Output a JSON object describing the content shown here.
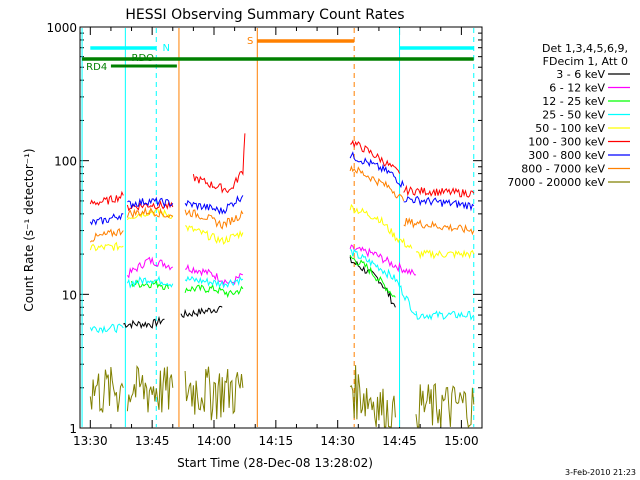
{
  "chart_data": {
    "type": "line",
    "title": "HESSI Observing Summary Count Rates",
    "xlabel": "Start Time (28-Dec-08 13:28:02)",
    "ylabel": "Count Rate (s⁻¹ detector⁻¹)",
    "x_unit": "minutes after 13:00 UT",
    "xlim": [
      27.5,
      125
    ],
    "ylim": [
      1,
      1000
    ],
    "y_scale": "log",
    "grid": false,
    "legend_position": "right",
    "x_ticks": [
      "13:30",
      "13:45",
      "14:00",
      "14:15",
      "14:30",
      "14:45",
      "15:00"
    ],
    "x_tick_values": [
      30,
      45,
      60,
      75,
      90,
      105,
      120
    ],
    "y_ticks": [
      "1",
      "10",
      "100",
      "1000"
    ],
    "y_tick_values": [
      1,
      10,
      100,
      1000
    ],
    "legend_header": [
      "Det 1,3,4,5,6,9,",
      "FDecim 1, Att 0"
    ],
    "series": [
      {
        "name": "3 - 6 keV",
        "color": "#000000",
        "segments": [
          [
            [
              38,
              6
            ],
            [
              45,
              6
            ],
            [
              48,
              6.5
            ]
          ],
          [
            [
              52,
              7
            ],
            [
              58,
              7.5
            ],
            [
              62,
              8
            ]
          ],
          [
            [
              93,
              18
            ],
            [
              100,
              13
            ],
            [
              102,
              10.5
            ],
            [
              104,
              8
            ]
          ]
        ]
      },
      {
        "name": "6 - 12 keV",
        "color": "#ff00ff",
        "segments": [
          [
            [
              39,
              14
            ],
            [
              44,
              18
            ],
            [
              48,
              17
            ],
            [
              50,
              16
            ]
          ],
          [
            [
              53,
              16
            ],
            [
              57,
              15
            ],
            [
              60,
              14
            ],
            [
              64,
              12
            ],
            [
              67,
              14
            ]
          ],
          [
            [
              93,
              22
            ],
            [
              99,
              20
            ],
            [
              103,
              17
            ],
            [
              109,
              14
            ]
          ]
        ]
      },
      {
        "name": "12 - 25 keV",
        "color": "#00ff00",
        "segments": [
          [
            [
              40,
              12
            ],
            [
              47,
              12
            ],
            [
              49,
              11
            ]
          ],
          [
            [
              53,
              11
            ],
            [
              60,
              11
            ],
            [
              64,
              10
            ],
            [
              67,
              11
            ]
          ],
          [
            [
              93,
              19
            ],
            [
              97,
              16
            ],
            [
              101,
              12
            ],
            [
              104,
              9.5
            ]
          ]
        ]
      },
      {
        "name": "25 - 50 keV",
        "color": "#00ffff",
        "segments": [
          [
            [
              30,
              5.6
            ],
            [
              38,
              5.6
            ]
          ],
          [
            [
              39,
              12
            ],
            [
              44,
              13
            ],
            [
              48,
              12.5
            ],
            [
              50,
              12
            ]
          ],
          [
            [
              53,
              13
            ],
            [
              58,
              12.5
            ],
            [
              62,
              12
            ],
            [
              67,
              13
            ]
          ],
          [
            [
              93,
              21
            ],
            [
              100,
              16
            ],
            [
              104,
              13
            ],
            [
              109,
              7
            ]
          ],
          [
            [
              109,
              7
            ],
            [
              123,
              7
            ]
          ]
        ]
      },
      {
        "name": "50 - 100 keV",
        "color": "#ffff00",
        "segments": [
          [
            [
              30,
              22
            ],
            [
              38,
              23
            ]
          ],
          [
            [
              39,
              38
            ],
            [
              45,
              42
            ],
            [
              50,
              39
            ]
          ],
          [
            [
              53,
              32
            ],
            [
              58,
              28
            ],
            [
              62,
              25
            ],
            [
              67,
              29
            ]
          ],
          [
            [
              93,
              45
            ],
            [
              100,
              37
            ],
            [
              104,
              27
            ],
            [
              108,
              22
            ]
          ],
          [
            [
              109,
              20
            ],
            [
              123,
              20
            ]
          ]
        ]
      },
      {
        "name": "100 - 300 keV",
        "color": "#ff0000",
        "segments": [
          [
            [
              30,
              48
            ],
            [
              34,
              50
            ],
            [
              38,
              55
            ]
          ],
          [
            [
              39,
              45
            ],
            [
              45,
              47
            ],
            [
              50,
              45
            ]
          ],
          [
            [
              55,
              75
            ],
            [
              60,
              65
            ],
            [
              64,
              60
            ],
            [
              67,
              85
            ],
            [
              67.5,
              160
            ]
          ],
          [
            [
              93,
              140
            ],
            [
              97,
              120
            ],
            [
              101,
              100
            ],
            [
              105,
              80
            ]
          ],
          [
            [
              106,
              60
            ],
            [
              123,
              57
            ]
          ]
        ]
      },
      {
        "name": "300 - 800 keV",
        "color": "#0000ff",
        "segments": [
          [
            [
              30,
              34
            ],
            [
              34,
              36
            ],
            [
              38,
              40
            ]
          ],
          [
            [
              39,
              47
            ],
            [
              44,
              50
            ],
            [
              50,
              48
            ]
          ],
          [
            [
              53,
              48
            ],
            [
              58,
              45
            ],
            [
              62,
              42
            ],
            [
              67,
              55
            ]
          ],
          [
            [
              93,
              110
            ],
            [
              98,
              95
            ],
            [
              103,
              80
            ],
            [
              106,
              65
            ]
          ],
          [
            [
              106,
              52
            ],
            [
              123,
              46
            ]
          ]
        ]
      },
      {
        "name": "800 - 7000 keV",
        "color": "#ff8000",
        "segments": [
          [
            [
              30,
              26
            ],
            [
              34,
              28
            ],
            [
              38,
              30
            ]
          ],
          [
            [
              39,
              40
            ],
            [
              45,
              42
            ],
            [
              50,
              38
            ]
          ],
          [
            [
              53,
              42
            ],
            [
              58,
              38
            ],
            [
              62,
              33
            ],
            [
              67,
              40
            ]
          ],
          [
            [
              93,
              90
            ],
            [
              98,
              75
            ],
            [
              103,
              62
            ],
            [
              106,
              50
            ]
          ],
          [
            [
              106,
              35
            ],
            [
              123,
              30
            ]
          ]
        ]
      },
      {
        "name": "7000 - 20000 keV",
        "color": "#808000",
        "segments": [
          [
            [
              30,
              2
            ],
            [
              38,
              2
            ]
          ],
          [
            [
              39,
              2
            ],
            [
              45,
              2
            ],
            [
              50,
              2
            ]
          ],
          [
            [
              53,
              2
            ],
            [
              60,
              2
            ],
            [
              67,
              2
            ]
          ],
          [
            [
              93,
              2.2
            ],
            [
              100,
              1.5
            ],
            [
              104,
              1.2
            ]
          ],
          [
            [
              109,
              1.5
            ],
            [
              123,
              1.5
            ]
          ]
        ]
      }
    ],
    "annotations": {
      "N": {
        "label": "N",
        "color": "#00ffff",
        "segments": [
          [
            30,
            46
          ],
          [
            105,
            123
          ]
        ]
      },
      "S": {
        "label": "S",
        "color": "#ff8000",
        "segments": [
          [
            70.5,
            94
          ]
        ]
      },
      "RDO": {
        "label": "RDO",
        "color": "#008000"
      },
      "RD4": {
        "label": "RD4",
        "color": "#008000"
      }
    },
    "timestamp": "3-Feb-2010 21:23"
  }
}
